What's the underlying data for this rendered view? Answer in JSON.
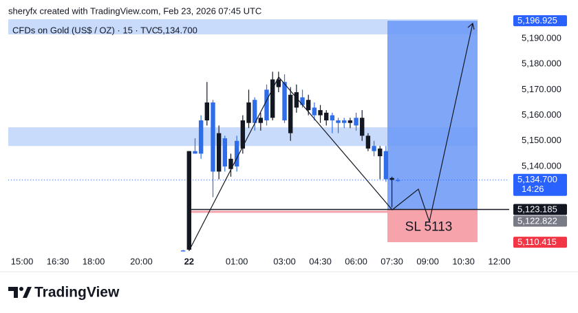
{
  "chart_data": {
    "type": "candlestick",
    "header": "sheryfx created with TradingView.com, Feb 23, 2026 07:45 UTC",
    "symbol": "CFDs on Gold (US$ / OZ) · 15 · TVC",
    "last_value": 5134.7,
    "last_label": "5,134.700",
    "countdown": "14:26",
    "up_color": "#2f6ee8",
    "down_color": "#131722",
    "categories": [
      null,
      null,
      "15:00",
      null,
      null,
      null,
      null,
      null,
      "16:30",
      null,
      null,
      null,
      null,
      null,
      "18:00",
      null,
      null,
      null,
      null,
      null,
      null,
      null,
      "20:00",
      null,
      null,
      null,
      null,
      null,
      null,
      null,
      "22",
      null,
      null,
      null,
      null,
      null,
      null,
      null,
      "01:00",
      null,
      null,
      null,
      null,
      null,
      null,
      null,
      "03:00",
      null,
      null,
      null,
      null,
      null,
      "04:30",
      null,
      null,
      null,
      null,
      null,
      "06:00",
      null,
      null,
      null,
      null,
      null,
      "07:30",
      null,
      null,
      null,
      null,
      null,
      "09:00",
      null,
      null,
      null,
      null,
      null,
      "10:30",
      null,
      null,
      null,
      null,
      null,
      "12:00",
      null
    ],
    "open": [
      null,
      null,
      null,
      null,
      null,
      null,
      null,
      null,
      null,
      null,
      null,
      null,
      null,
      null,
      null,
      null,
      null,
      null,
      null,
      null,
      null,
      null,
      null,
      null,
      null,
      null,
      null,
      null,
      null,
      5107.2,
      5146,
      5145,
      5145,
      5165,
      5138,
      5153,
      5140,
      5143,
      5140,
      5158,
      5165,
      5157,
      5159,
      5158,
      5174,
      5174,
      5158,
      5168,
      5169,
      5164,
      5166,
      5160,
      5162,
      5161,
      5158,
      5157,
      5157,
      5158,
      5156,
      5159,
      5152,
      5146,
      5147,
      5135,
      5135.5,
      5134.5,
      null,
      null,
      null,
      null,
      null,
      null,
      null,
      null,
      null,
      null,
      null,
      null,
      null,
      null,
      null,
      null,
      null,
      null
    ],
    "high": [
      null,
      null,
      null,
      null,
      null,
      null,
      null,
      null,
      null,
      null,
      null,
      null,
      null,
      null,
      null,
      null,
      null,
      null,
      null,
      null,
      null,
      null,
      null,
      null,
      null,
      null,
      null,
      null,
      null,
      5107.4,
      5146,
      5151,
      5160,
      5173,
      5166,
      5156,
      5152,
      5145,
      5152,
      5160,
      5170,
      5167,
      5161,
      5172,
      5177,
      5177,
      5176,
      5171,
      5172,
      5170,
      5168,
      5165,
      5164,
      5162,
      5161,
      5159,
      5159,
      5159,
      5161,
      5162,
      5153,
      5150,
      5148,
      5148,
      5136,
      5135.5,
      null,
      null,
      null,
      null,
      null,
      null,
      null,
      null,
      null,
      null,
      null,
      null,
      null,
      null,
      null,
      null,
      null,
      null
    ],
    "low": [
      null,
      null,
      null,
      null,
      null,
      null,
      null,
      null,
      null,
      null,
      null,
      null,
      null,
      null,
      null,
      null,
      null,
      null,
      null,
      null,
      null,
      null,
      null,
      null,
      null,
      null,
      null,
      null,
      null,
      5107,
      5107,
      5145,
      5143,
      5156,
      5128,
      5135,
      5138,
      5136,
      5138,
      5145,
      5155,
      5154,
      5154,
      5156,
      5158,
      5169,
      5157,
      5150,
      5161,
      5163,
      5160,
      5158,
      5157,
      5156,
      5153,
      5153,
      5155,
      5155,
      5154,
      5150,
      5146,
      5144,
      5135,
      5134,
      5124,
      5134,
      null,
      null,
      null,
      null,
      null,
      null,
      null,
      null,
      null,
      null,
      null,
      null,
      null,
      null,
      null,
      null,
      null,
      null
    ],
    "close": [
      null,
      null,
      null,
      null,
      null,
      null,
      null,
      null,
      null,
      null,
      null,
      null,
      null,
      null,
      null,
      null,
      null,
      null,
      null,
      null,
      null,
      null,
      null,
      null,
      null,
      null,
      null,
      null,
      null,
      5107.2,
      5107.5,
      5146,
      5158,
      5158,
      5165,
      5138,
      5151,
      5139,
      5150,
      5147,
      5157,
      5166,
      5157,
      5170,
      5159,
      5171,
      5173,
      5153,
      5163,
      5167,
      5162,
      5163,
      5160,
      5158,
      5160,
      5158,
      5158,
      5157,
      5159,
      5152,
      5147,
      5148,
      5144,
      5146,
      5134.8,
      5134.7,
      null,
      null,
      null,
      null,
      null,
      null,
      null,
      null,
      null,
      null,
      null,
      null,
      null,
      null,
      null,
      null,
      null,
      null
    ],
    "ylim": [
      5105.6,
      5197.5
    ],
    "yticks": [
      {
        "value": 5140,
        "label": "5,140.000"
      },
      {
        "value": 5150,
        "label": "5,150.000"
      },
      {
        "value": 5160,
        "label": "5,160.000"
      },
      {
        "value": 5170,
        "label": "5,170.000"
      },
      {
        "value": 5180,
        "label": "5,180.000"
      },
      {
        "value": 5190,
        "label": "5,190.000"
      }
    ],
    "price_labels": [
      {
        "value": 5196.925,
        "label": "5,196.925",
        "color": "#2962ff"
      },
      {
        "value": 5123.185,
        "label": "5,123.185",
        "color": "#131722"
      },
      {
        "value": 5122.822,
        "label": "5,122.822",
        "color": "#787b86"
      },
      {
        "value": 5110.415,
        "label": "5,110.415",
        "color": "#f23645"
      }
    ],
    "zones": [
      {
        "from": 5191.6,
        "to": 5197.5
      },
      {
        "from": 5148,
        "to": 5155.3
      }
    ],
    "position": {
      "target": 5196.925,
      "entry": 5123.185,
      "stop": 5110.415
    },
    "annotation": "SL 5113",
    "brand": "TradingView"
  }
}
